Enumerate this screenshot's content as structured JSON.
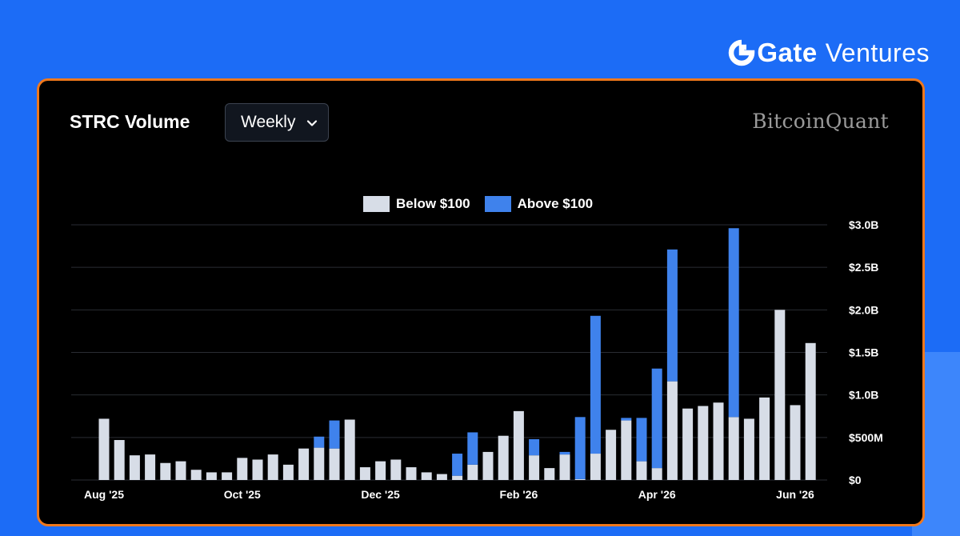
{
  "brand": {
    "logo_text": "Gate",
    "subtitle": "Ventures"
  },
  "panel": {
    "title": "STRC Volume",
    "frequency_selected": "Weekly",
    "watermark": "BitcoinQuant"
  },
  "colors": {
    "page_bg": "#1c6cf6",
    "panel_border": "#f0781b",
    "below": "#d7dde7",
    "above": "#3f82ec"
  },
  "chart_data": {
    "type": "bar",
    "stacked": true,
    "legend_position": "top-center",
    "grid": true,
    "y_axis_side": "right",
    "ylim": [
      0,
      3.0
    ],
    "y_ticks": [
      0,
      0.5,
      1.0,
      1.5,
      2.0,
      2.5,
      3.0
    ],
    "y_tick_labels": [
      "$0",
      "$500M",
      "$1.0B",
      "$1.5B",
      "$2.0B",
      "$2.5B",
      "$3.0B"
    ],
    "x_tick_labels": [
      {
        "label": "Aug '25",
        "week_index": 0
      },
      {
        "label": "Oct '25",
        "week_index": 9
      },
      {
        "label": "Dec '25",
        "week_index": 18
      },
      {
        "label": "Feb '26",
        "week_index": 27
      },
      {
        "label": "Apr '26",
        "week_index": 36
      },
      {
        "label": "Jun '26",
        "week_index": 45
      }
    ],
    "units": "USD billions",
    "series": [
      {
        "name": "Below $100",
        "values": [
          0.72,
          0.47,
          0.29,
          0.3,
          0.2,
          0.22,
          0.12,
          0.09,
          0.09,
          0.26,
          0.24,
          0.3,
          0.18,
          0.37,
          0.38,
          0.37,
          0.71,
          0.15,
          0.22,
          0.24,
          0.15,
          0.09,
          0.07,
          0.05,
          0.18,
          0.33,
          0.52,
          0.81,
          0.29,
          0.14,
          0.3,
          0.01,
          0.31,
          0.59,
          0.7,
          0.22,
          0.14,
          1.16,
          0.84,
          0.87,
          0.91,
          0.74,
          0.72,
          0.97,
          2.0,
          0.88,
          1.61
        ]
      },
      {
        "name": "Above $100",
        "values": [
          0,
          0,
          0,
          0,
          0,
          0,
          0,
          0,
          0,
          0,
          0,
          0,
          0,
          0,
          0.13,
          0.33,
          0,
          0,
          0,
          0,
          0,
          0,
          0,
          0.26,
          0.38,
          0,
          0,
          0,
          0.19,
          0,
          0.03,
          0.73,
          1.62,
          0,
          0.03,
          0.51,
          1.17,
          1.55,
          0,
          0,
          0,
          2.22,
          0,
          0,
          0,
          0,
          0
        ]
      }
    ]
  }
}
